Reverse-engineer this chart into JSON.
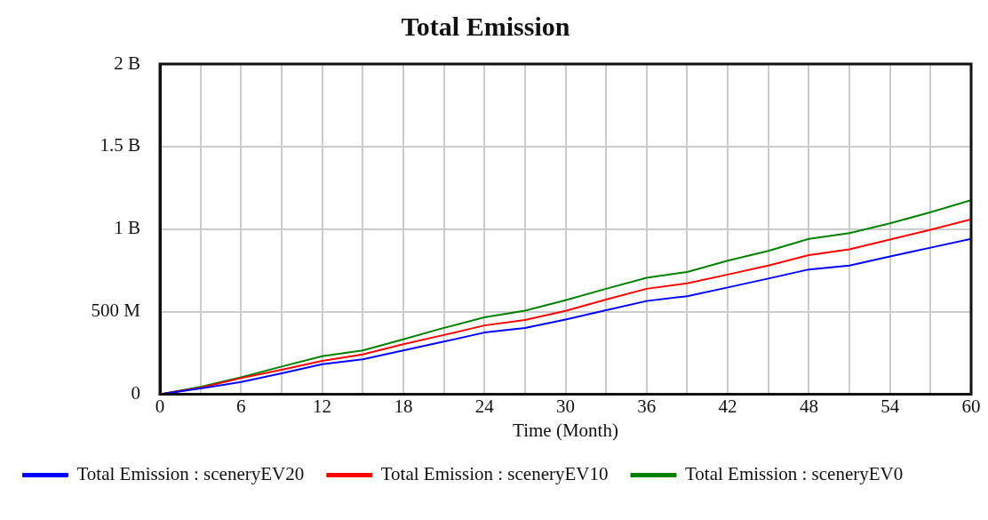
{
  "chart_data": {
    "type": "line",
    "title": "Total Emission",
    "xlabel": "Time (Month)",
    "x": [
      0,
      3,
      6,
      9,
      12,
      15,
      18,
      21,
      24,
      27,
      30,
      33,
      36,
      39,
      42,
      45,
      48,
      51,
      54,
      57,
      60
    ],
    "series": [
      {
        "name": "Total Emission : sceneryEV20",
        "color": "#0000ff",
        "values": [
          0,
          36000000,
          74000000,
          127000000,
          182000000,
          212000000,
          266000000,
          319000000,
          374000000,
          402000000,
          453000000,
          509000000,
          565000000,
          594000000,
          647000000,
          701000000,
          756000000,
          780000000,
          835000000,
          888000000,
          941000000
        ]
      },
      {
        "name": "Total Emission : sceneryEV10",
        "color": "#ff0000",
        "values": [
          0,
          40000000,
          98000000,
          149000000,
          202000000,
          241000000,
          303000000,
          359000000,
          417000000,
          450000000,
          505000000,
          574000000,
          639000000,
          672000000,
          725000000,
          780000000,
          843000000,
          878000000,
          937000000,
          996000000,
          1060000000
        ]
      },
      {
        "name": "Total Emission : sceneryEV0",
        "color": "#008000",
        "values": [
          0,
          45000000,
          103000000,
          168000000,
          231000000,
          266000000,
          333000000,
          402000000,
          466000000,
          506000000,
          570000000,
          639000000,
          706000000,
          741000000,
          809000000,
          868000000,
          941000000,
          976000000,
          1035000000,
          1103000000,
          1176000000
        ]
      }
    ],
    "xlim": [
      0,
      60
    ],
    "xticks": [
      0,
      6,
      12,
      18,
      24,
      30,
      36,
      42,
      48,
      54,
      60
    ],
    "ylim": [
      0,
      2000000000
    ],
    "yticks": [
      {
        "value": 0,
        "label": "0"
      },
      {
        "value": 500000000,
        "label": "500 M"
      },
      {
        "value": 1000000000,
        "label": "1 B"
      },
      {
        "value": 1500000000,
        "label": "1.5 B"
      },
      {
        "value": 2000000000,
        "label": "2 B"
      }
    ],
    "grid": true,
    "legend": "bottom",
    "marker": "none",
    "line_style": "solid"
  }
}
